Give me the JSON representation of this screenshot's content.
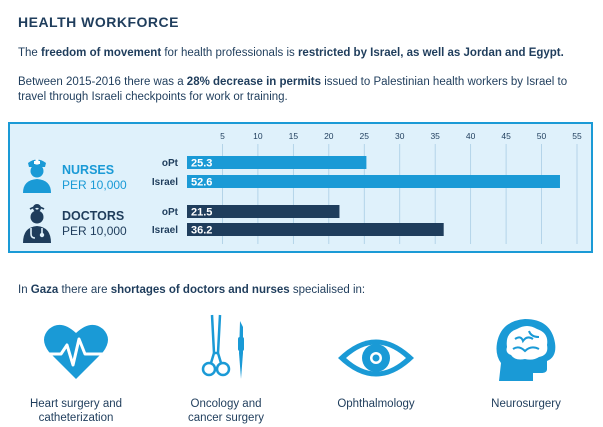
{
  "header": {
    "title": "HEALTH WORKFORCE"
  },
  "intro": {
    "p1_a": "The ",
    "p1_b": "freedom of movement",
    "p1_c": " for health professionals is ",
    "p1_d": "restricted by Israel, as well as Jordan and Egypt.",
    "p2_a": "Between 2015-2016 there was a ",
    "p2_b": "28% decrease in permits",
    "p2_c": " issued to Palestinian health workers by Israel to travel through Israeli checkpoints for work or training."
  },
  "groups": {
    "nurses": {
      "title": "NURSES",
      "sub": "PER 10,000",
      "icon": "nurse-icon"
    },
    "doctors": {
      "title": "DOCTORS",
      "sub": "PER 10,000",
      "icon": "doctor-icon"
    }
  },
  "chart_data": {
    "type": "bar",
    "orientation": "horizontal",
    "xlim": [
      0,
      55
    ],
    "ticks": [
      5,
      10,
      15,
      20,
      25,
      30,
      35,
      40,
      45,
      50,
      55
    ],
    "grid": true,
    "groups": [
      {
        "name": "NURSES",
        "bars": [
          {
            "label": "oPt",
            "value": 25.3,
            "color": "#1a9ad6"
          },
          {
            "label": "Israel",
            "value": 52.6,
            "color": "#1a9ad6"
          }
        ]
      },
      {
        "name": "DOCTORS",
        "bars": [
          {
            "label": "oPt",
            "value": 21.5,
            "color": "#1f3d5c"
          },
          {
            "label": "Israel",
            "value": 36.2,
            "color": "#1f3d5c"
          }
        ]
      }
    ]
  },
  "colors": {
    "accent": "#1a9ad6",
    "navy": "#1f3d5c",
    "panel": "#dff1fb"
  },
  "gaza": {
    "a": "In ",
    "b": "Gaza",
    "c": " there are ",
    "d": "shortages of doctors and nurses",
    "e": " specialised in:"
  },
  "specialties": [
    {
      "line1": "Heart surgery and",
      "line2": "catheterization",
      "icon": "heart-icon"
    },
    {
      "line1": "Oncology and",
      "line2": "cancer surgery",
      "icon": "surgical-tools-icon"
    },
    {
      "line1": "Ophthalmology",
      "line2": "",
      "icon": "eye-icon"
    },
    {
      "line1": "Neurosurgery",
      "line2": "",
      "icon": "brain-icon"
    }
  ]
}
